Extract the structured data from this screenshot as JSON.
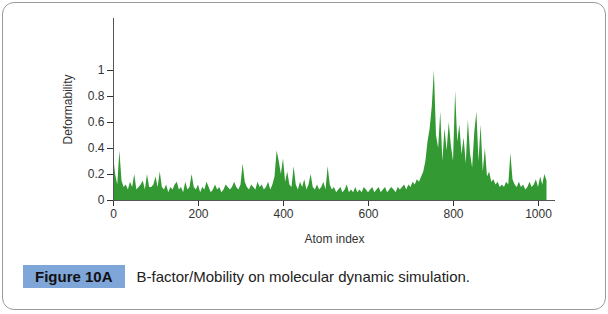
{
  "chart_data": {
    "type": "area",
    "title": "B-factor/Mobility on molecular dynamic simulation.",
    "figure_label": "Figure 10A",
    "x_label": "Atom index",
    "y_label": "Deformability",
    "color": "#339933",
    "grid": false,
    "xlim": [
      0,
      1040
    ],
    "xticks": [
      0,
      200,
      400,
      600,
      800,
      1000
    ],
    "ylim": [
      0,
      1.4
    ],
    "yticks": [
      0,
      0.2,
      0.4,
      0.6,
      0.8,
      1
    ],
    "x": [
      0,
      5,
      10,
      15,
      20,
      25,
      30,
      35,
      40,
      45,
      50,
      55,
      60,
      65,
      70,
      75,
      80,
      85,
      90,
      95,
      100,
      105,
      110,
      115,
      120,
      125,
      130,
      135,
      140,
      145,
      150,
      155,
      160,
      165,
      170,
      175,
      180,
      185,
      190,
      195,
      200,
      205,
      210,
      215,
      220,
      225,
      230,
      235,
      240,
      245,
      250,
      255,
      260,
      265,
      270,
      275,
      280,
      285,
      290,
      295,
      300,
      305,
      310,
      315,
      320,
      325,
      330,
      335,
      340,
      345,
      350,
      355,
      360,
      365,
      370,
      375,
      380,
      385,
      390,
      395,
      400,
      405,
      410,
      415,
      420,
      425,
      430,
      435,
      440,
      445,
      450,
      455,
      460,
      465,
      470,
      475,
      480,
      485,
      490,
      495,
      500,
      505,
      510,
      515,
      520,
      525,
      530,
      535,
      540,
      545,
      550,
      555,
      560,
      565,
      570,
      575,
      580,
      585,
      590,
      595,
      600,
      605,
      610,
      615,
      620,
      625,
      630,
      635,
      640,
      645,
      650,
      655,
      660,
      665,
      670,
      675,
      680,
      685,
      690,
      695,
      700,
      705,
      710,
      715,
      720,
      725,
      730,
      735,
      740,
      745,
      750,
      755,
      760,
      765,
      770,
      775,
      780,
      785,
      790,
      795,
      800,
      805,
      810,
      815,
      820,
      825,
      830,
      835,
      840,
      845,
      850,
      855,
      860,
      865,
      870,
      875,
      880,
      885,
      890,
      895,
      900,
      905,
      910,
      915,
      920,
      925,
      930,
      935,
      940,
      945,
      950,
      955,
      960,
      965,
      970,
      975,
      980,
      985,
      990,
      995,
      1000,
      1005,
      1010,
      1015,
      1020
    ],
    "values": [
      0.35,
      0.2,
      0.12,
      0.38,
      0.15,
      0.1,
      0.12,
      0.08,
      0.14,
      0.1,
      0.2,
      0.08,
      0.1,
      0.12,
      0.15,
      0.08,
      0.2,
      0.1,
      0.1,
      0.12,
      0.18,
      0.1,
      0.22,
      0.1,
      0.08,
      0.12,
      0.06,
      0.1,
      0.08,
      0.12,
      0.14,
      0.08,
      0.1,
      0.06,
      0.14,
      0.08,
      0.1,
      0.2,
      0.1,
      0.08,
      0.12,
      0.06,
      0.1,
      0.08,
      0.14,
      0.1,
      0.06,
      0.08,
      0.12,
      0.08,
      0.1,
      0.06,
      0.08,
      0.12,
      0.1,
      0.08,
      0.1,
      0.14,
      0.1,
      0.08,
      0.12,
      0.28,
      0.14,
      0.1,
      0.08,
      0.12,
      0.1,
      0.08,
      0.14,
      0.1,
      0.12,
      0.08,
      0.1,
      0.14,
      0.08,
      0.12,
      0.18,
      0.38,
      0.3,
      0.2,
      0.32,
      0.14,
      0.22,
      0.12,
      0.1,
      0.26,
      0.12,
      0.08,
      0.14,
      0.1,
      0.16,
      0.08,
      0.12,
      0.2,
      0.1,
      0.08,
      0.12,
      0.08,
      0.1,
      0.14,
      0.08,
      0.26,
      0.12,
      0.08,
      0.1,
      0.06,
      0.08,
      0.1,
      0.06,
      0.08,
      0.12,
      0.06,
      0.08,
      0.06,
      0.1,
      0.06,
      0.08,
      0.06,
      0.1,
      0.08,
      0.06,
      0.08,
      0.1,
      0.06,
      0.08,
      0.1,
      0.06,
      0.08,
      0.1,
      0.06,
      0.08,
      0.1,
      0.08,
      0.06,
      0.1,
      0.08,
      0.1,
      0.12,
      0.08,
      0.12,
      0.1,
      0.14,
      0.12,
      0.16,
      0.14,
      0.18,
      0.22,
      0.3,
      0.45,
      0.55,
      0.72,
      1.0,
      0.5,
      0.4,
      0.68,
      0.3,
      0.55,
      0.38,
      0.6,
      0.42,
      0.3,
      0.84,
      0.45,
      0.58,
      0.35,
      0.48,
      0.28,
      0.62,
      0.36,
      0.25,
      0.52,
      0.68,
      0.3,
      0.58,
      0.22,
      0.4,
      0.18,
      0.22,
      0.14,
      0.16,
      0.12,
      0.14,
      0.1,
      0.12,
      0.1,
      0.14,
      0.12,
      0.36,
      0.16,
      0.12,
      0.1,
      0.14,
      0.1,
      0.12,
      0.08,
      0.1,
      0.14,
      0.1,
      0.12,
      0.16,
      0.1,
      0.18,
      0.12,
      0.2,
      0.15
    ]
  }
}
